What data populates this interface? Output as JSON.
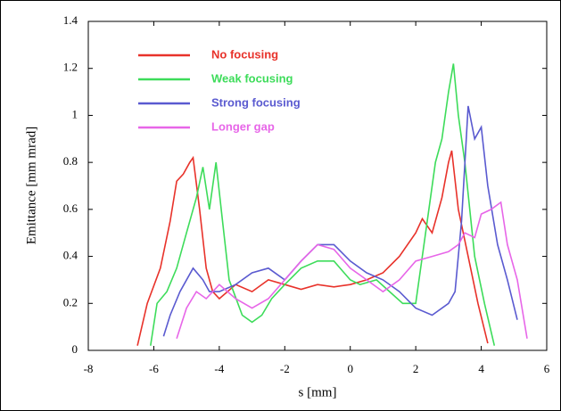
{
  "chart_data": {
    "type": "line",
    "xlabel": "s [mm]",
    "ylabel": "Emittance [mm mrad]",
    "xlim": [
      -8,
      6
    ],
    "xticks": [
      -8,
      -6,
      -4,
      -2,
      0,
      2,
      4,
      6
    ],
    "ylim": [
      0,
      1.4
    ],
    "yticks": [
      0,
      0.2,
      0.4,
      0.6,
      0.8,
      1,
      1.2,
      1.4
    ],
    "legend": "upper left",
    "series": [
      {
        "name": "No focusing",
        "color": "#e8322a",
        "x": [
          -6.5,
          -6.2,
          -5.8,
          -5.5,
          -5.3,
          -5.1,
          -4.9,
          -4.8,
          -4.6,
          -4.4,
          -4.2,
          -4.0,
          -3.5,
          -3.0,
          -2.5,
          -2.0,
          -1.5,
          -1.0,
          -0.5,
          0,
          0.5,
          1.0,
          1.5,
          2.0,
          2.2,
          2.5,
          2.8,
          3.0,
          3.1,
          3.3,
          3.6,
          3.9,
          4.2
        ],
        "values": [
          0.02,
          0.2,
          0.35,
          0.55,
          0.72,
          0.75,
          0.8,
          0.82,
          0.6,
          0.35,
          0.25,
          0.22,
          0.28,
          0.25,
          0.3,
          0.28,
          0.26,
          0.28,
          0.27,
          0.28,
          0.3,
          0.33,
          0.4,
          0.5,
          0.56,
          0.5,
          0.65,
          0.8,
          0.85,
          0.6,
          0.4,
          0.2,
          0.03
        ]
      },
      {
        "name": "Weak focusing",
        "color": "#3ddc5a",
        "x": [
          -6.1,
          -5.9,
          -5.6,
          -5.3,
          -5.0,
          -4.7,
          -4.5,
          -4.3,
          -4.1,
          -3.9,
          -3.7,
          -3.3,
          -3.0,
          -2.7,
          -2.4,
          -2.0,
          -1.5,
          -1.0,
          -0.5,
          0,
          0.3,
          0.8,
          1.2,
          1.6,
          2.0,
          2.3,
          2.6,
          2.8,
          3.0,
          3.15,
          3.3,
          3.5,
          3.8,
          4.1,
          4.4
        ],
        "values": [
          0.02,
          0.2,
          0.25,
          0.35,
          0.5,
          0.65,
          0.78,
          0.6,
          0.8,
          0.55,
          0.3,
          0.15,
          0.12,
          0.15,
          0.22,
          0.28,
          0.35,
          0.38,
          0.38,
          0.3,
          0.28,
          0.3,
          0.25,
          0.2,
          0.2,
          0.5,
          0.8,
          0.9,
          1.1,
          1.22,
          1.0,
          0.8,
          0.4,
          0.2,
          0.02
        ]
      },
      {
        "name": "Strong focusing",
        "color": "#5a5ad0",
        "x": [
          -5.7,
          -5.5,
          -5.2,
          -4.8,
          -4.5,
          -4.3,
          -4.0,
          -3.5,
          -3.0,
          -2.5,
          -2.0,
          -1.5,
          -1.0,
          -0.5,
          0,
          0.5,
          1.0,
          1.5,
          2.0,
          2.5,
          3.0,
          3.2,
          3.4,
          3.6,
          3.8,
          4.0,
          4.2,
          4.5,
          4.8,
          5.1
        ],
        "values": [
          0.06,
          0.15,
          0.25,
          0.35,
          0.3,
          0.25,
          0.25,
          0.28,
          0.33,
          0.35,
          0.3,
          0.38,
          0.45,
          0.45,
          0.38,
          0.33,
          0.3,
          0.25,
          0.18,
          0.15,
          0.2,
          0.25,
          0.55,
          1.04,
          0.9,
          0.95,
          0.7,
          0.45,
          0.3,
          0.13
        ]
      },
      {
        "name": "Longer gap",
        "color": "#e766e8",
        "x": [
          -5.3,
          -5.0,
          -4.7,
          -4.4,
          -4.0,
          -3.5,
          -3.0,
          -2.5,
          -2.0,
          -1.5,
          -1.0,
          -0.5,
          0,
          0.5,
          1.0,
          1.5,
          2.0,
          2.5,
          3.0,
          3.3,
          3.5,
          3.8,
          4.0,
          4.3,
          4.6,
          4.8,
          5.1,
          5.4
        ],
        "values": [
          0.05,
          0.18,
          0.25,
          0.22,
          0.28,
          0.22,
          0.18,
          0.22,
          0.3,
          0.38,
          0.45,
          0.43,
          0.35,
          0.3,
          0.25,
          0.3,
          0.38,
          0.4,
          0.42,
          0.45,
          0.5,
          0.48,
          0.58,
          0.6,
          0.63,
          0.45,
          0.3,
          0.05
        ]
      }
    ]
  }
}
